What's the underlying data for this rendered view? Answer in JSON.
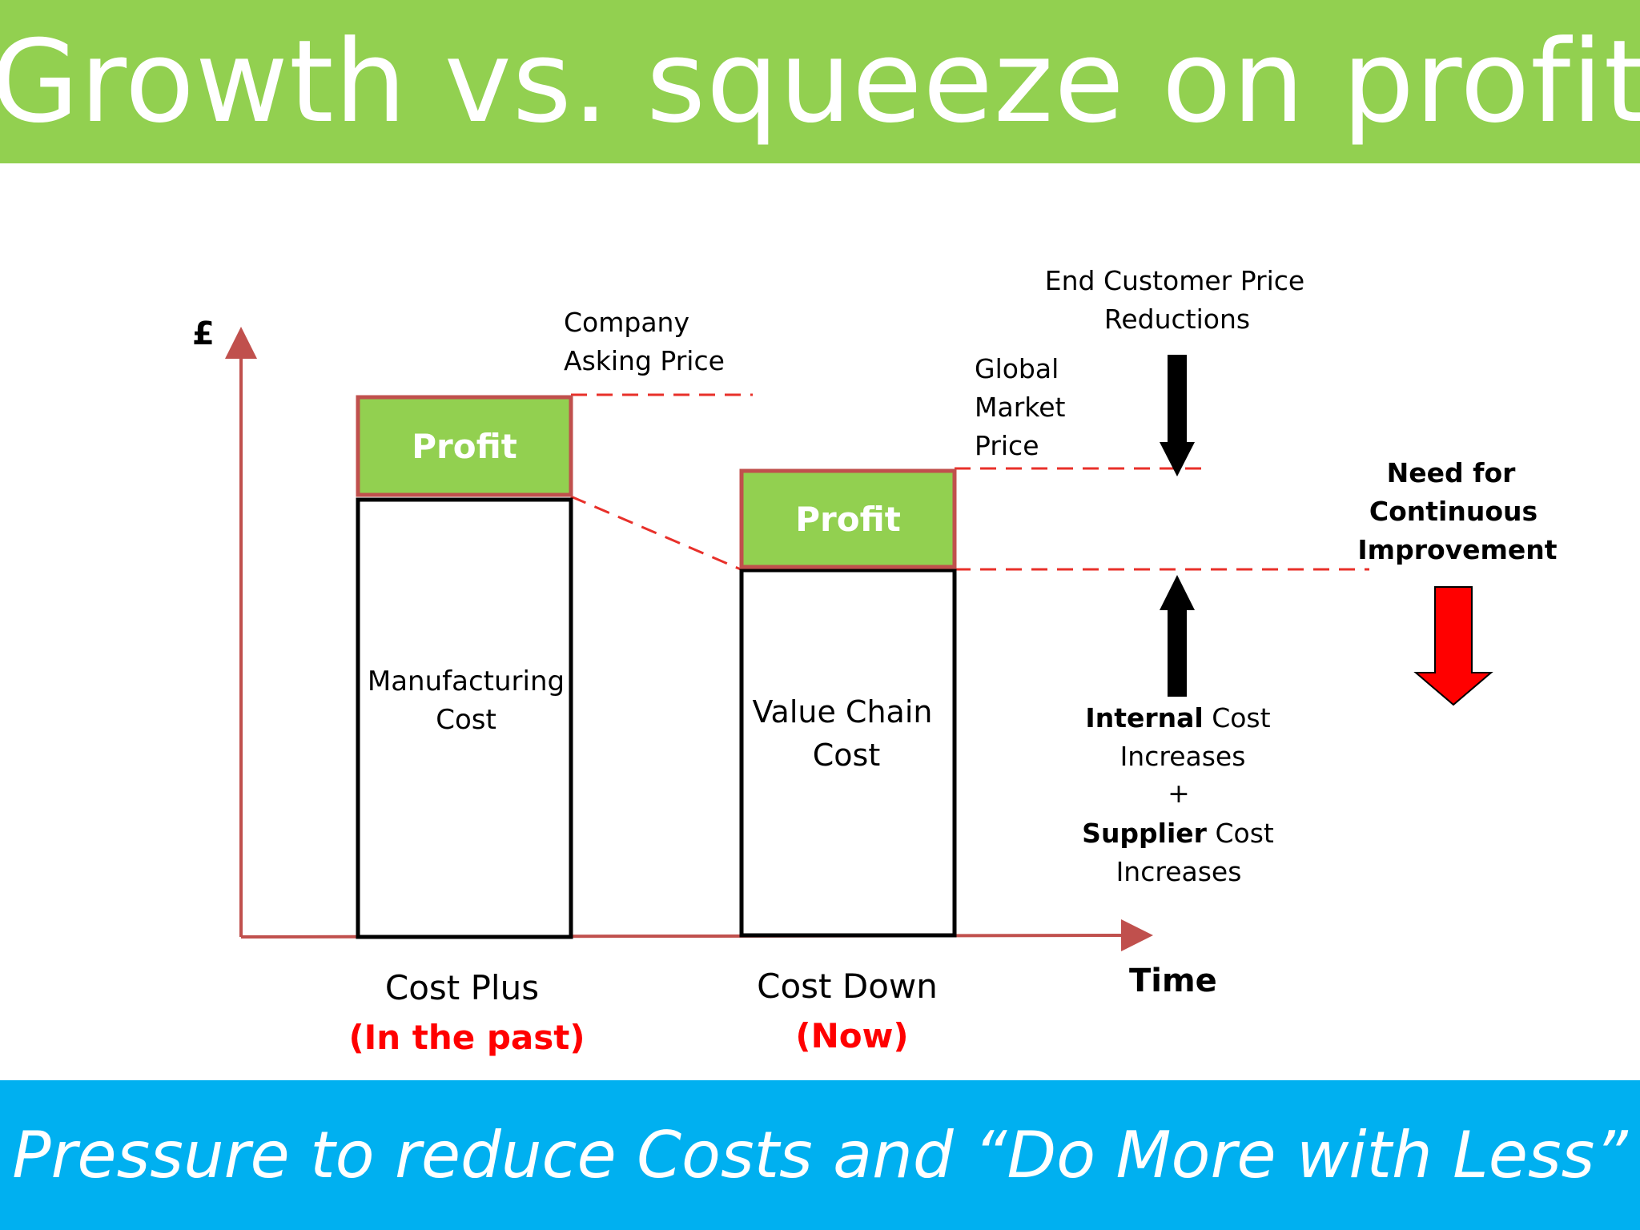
{
  "title": "Growth vs. squeeze on profit",
  "footer": "Pressure to reduce Costs and “Do More with Less”",
  "axes": {
    "y_symbol": "£",
    "x_label": "Time"
  },
  "bars": [
    {
      "profit_label": "Profit",
      "cost_line1": "Manufacturing",
      "cost_line2": "Cost",
      "name": "Cost Plus",
      "period": "(In the past)"
    },
    {
      "profit_label": "Profit",
      "cost_line1": "Value Chain",
      "cost_line2": "Cost",
      "name": "Cost Down",
      "period": "(Now)"
    }
  ],
  "labels": {
    "asking_price": [
      "Company",
      "Asking Price"
    ],
    "market_price": [
      "Global",
      "Market",
      "Price"
    ],
    "end_customer": [
      "End Customer Price",
      "Reductions"
    ],
    "internal_bold": "Internal",
    "internal_rest": " Cost",
    "increases_1": "Increases",
    "plus": "+",
    "supplier_bold": "Supplier",
    "supplier_rest": " Cost",
    "increases_2": "Increases",
    "improvement": [
      "Need for",
      "Continuous",
      "Improvement"
    ]
  },
  "colors": {
    "title_bg": "#92d050",
    "footer_bg": "#00b0f0",
    "profit_fill": "#92d050",
    "axis": "#c0504d",
    "dash": "#e8302a",
    "red_text": "#ff0000",
    "red_arrow": "#ff0000"
  }
}
